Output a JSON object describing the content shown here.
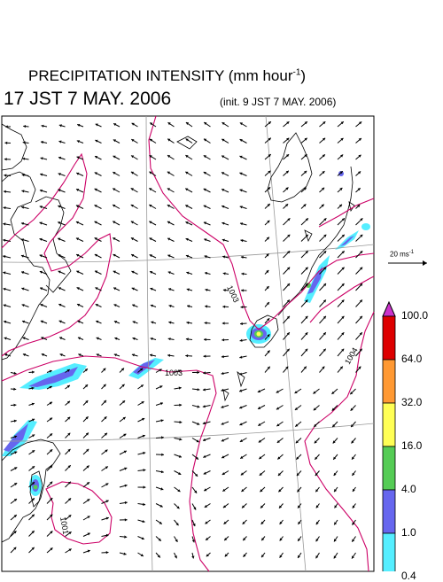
{
  "title": {
    "main": "PRECIPITATION INTENSITY (mm hour",
    "exponent": "-1",
    "main_close": ")",
    "valid_time": "17 JST 7 MAY. 2006",
    "init_time": "(init. 9 JST 7 MAY. 2006)"
  },
  "reference_vector": {
    "label": "20 ms",
    "exponent": "-1"
  },
  "isobars": {
    "labels": [
      "1003",
      "1003",
      "1004",
      "1001"
    ]
  },
  "colorbar": {
    "levels": [
      "100.0",
      "64.0",
      "32.0",
      "16.0",
      "4.0",
      "1.0",
      "0.4"
    ],
    "colors": [
      "#dd0000",
      "#ff9933",
      "#ffff55",
      "#55cc55",
      "#6666ee",
      "#55eeff"
    ],
    "top_arrow_color": "#cc33cc",
    "bottom_arrow_color": "#ffffff"
  },
  "colors": {
    "isobar": "#cc0066",
    "coast": "#000000",
    "grid": "#999999",
    "wind_arrow": "#000000"
  }
}
